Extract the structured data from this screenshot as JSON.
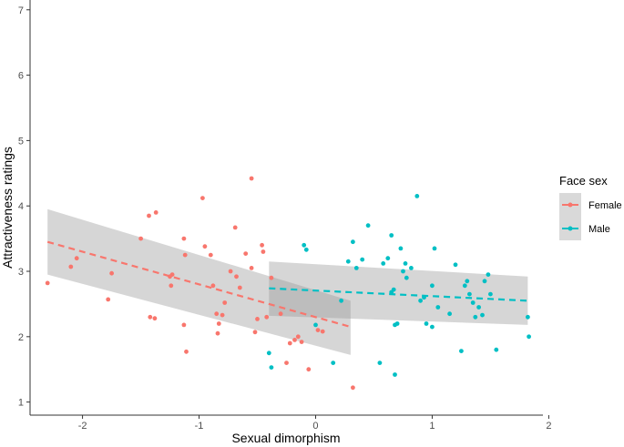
{
  "chart_data": {
    "type": "scatter",
    "xlabel": "Sexual dimorphism",
    "ylabel": "Attractiveness ratings",
    "xlim": [
      -2.45,
      1.95
    ],
    "ylim": [
      0.8,
      7.15
    ],
    "x_ticks": [
      -2,
      -1,
      0,
      1,
      2
    ],
    "y_ticks": [
      1,
      2,
      3,
      4,
      5,
      6,
      7
    ],
    "grid": false,
    "legend": {
      "title": "Face sex",
      "position": "right",
      "entries": [
        "Female",
        "Male"
      ]
    },
    "series": [
      {
        "name": "Female",
        "color": "#F8766D",
        "points": [
          [
            -2.3,
            2.82
          ],
          [
            -2.1,
            3.07
          ],
          [
            -2.05,
            3.2
          ],
          [
            -1.78,
            2.57
          ],
          [
            -1.75,
            2.97
          ],
          [
            -1.5,
            3.5
          ],
          [
            -1.43,
            3.85
          ],
          [
            -1.37,
            3.9
          ],
          [
            -1.42,
            2.3
          ],
          [
            -1.38,
            2.28
          ],
          [
            -1.25,
            2.92
          ],
          [
            -1.23,
            2.95
          ],
          [
            -1.24,
            2.78
          ],
          [
            -1.13,
            3.5
          ],
          [
            -1.12,
            3.25
          ],
          [
            -1.13,
            2.18
          ],
          [
            -1.11,
            1.77
          ],
          [
            -0.97,
            4.12
          ],
          [
            -0.95,
            3.38
          ],
          [
            -0.9,
            3.25
          ],
          [
            -0.88,
            2.78
          ],
          [
            -0.85,
            2.35
          ],
          [
            -0.84,
            2.05
          ],
          [
            -0.83,
            2.2
          ],
          [
            -0.8,
            2.33
          ],
          [
            -0.78,
            2.52
          ],
          [
            -0.73,
            3.0
          ],
          [
            -0.69,
            3.67
          ],
          [
            -0.68,
            2.92
          ],
          [
            -0.65,
            2.75
          ],
          [
            -0.6,
            3.27
          ],
          [
            -0.55,
            3.05
          ],
          [
            -0.55,
            4.42
          ],
          [
            -0.5,
            2.27
          ],
          [
            -0.52,
            2.07
          ],
          [
            -0.46,
            3.4
          ],
          [
            -0.45,
            3.3
          ],
          [
            -0.42,
            2.3
          ],
          [
            -0.38,
            2.9
          ],
          [
            -0.3,
            2.35
          ],
          [
            -0.25,
            1.6
          ],
          [
            -0.22,
            1.9
          ],
          [
            -0.18,
            1.95
          ],
          [
            -0.15,
            2.0
          ],
          [
            -0.12,
            1.92
          ],
          [
            -0.06,
            1.5
          ],
          [
            0.02,
            2.1
          ],
          [
            0.06,
            2.08
          ],
          [
            0.32,
            1.22
          ]
        ],
        "trend": {
          "x_start": -2.3,
          "x_end": 0.3,
          "y_start": 3.45,
          "y_end": 2.15
        },
        "ci": {
          "upper_start": 3.95,
          "upper_end": 2.55,
          "lower_start": 2.95,
          "lower_end": 1.72
        }
      },
      {
        "name": "Male",
        "color": "#00BFC4",
        "points": [
          [
            -0.4,
            1.75
          ],
          [
            -0.38,
            1.53
          ],
          [
            -0.1,
            3.4
          ],
          [
            -0.08,
            3.33
          ],
          [
            0.0,
            2.18
          ],
          [
            0.15,
            1.6
          ],
          [
            0.22,
            2.55
          ],
          [
            0.28,
            3.15
          ],
          [
            0.32,
            3.45
          ],
          [
            0.35,
            3.05
          ],
          [
            0.4,
            3.18
          ],
          [
            0.45,
            3.7
          ],
          [
            0.55,
            1.6
          ],
          [
            0.58,
            3.12
          ],
          [
            0.62,
            3.2
          ],
          [
            0.65,
            3.55
          ],
          [
            0.65,
            2.68
          ],
          [
            0.67,
            2.72
          ],
          [
            0.68,
            2.18
          ],
          [
            0.7,
            2.2
          ],
          [
            0.68,
            1.42
          ],
          [
            0.73,
            3.35
          ],
          [
            0.75,
            3.0
          ],
          [
            0.77,
            3.12
          ],
          [
            0.78,
            2.9
          ],
          [
            0.82,
            3.05
          ],
          [
            0.87,
            4.15
          ],
          [
            0.9,
            2.55
          ],
          [
            0.93,
            2.6
          ],
          [
            0.95,
            2.2
          ],
          [
            1.0,
            2.15
          ],
          [
            1.0,
            2.78
          ],
          [
            1.02,
            3.35
          ],
          [
            1.05,
            2.45
          ],
          [
            1.15,
            2.35
          ],
          [
            1.2,
            3.1
          ],
          [
            1.25,
            1.78
          ],
          [
            1.28,
            2.78
          ],
          [
            1.3,
            2.85
          ],
          [
            1.32,
            2.65
          ],
          [
            1.35,
            2.52
          ],
          [
            1.37,
            2.3
          ],
          [
            1.4,
            2.45
          ],
          [
            1.43,
            2.33
          ],
          [
            1.45,
            2.85
          ],
          [
            1.48,
            2.95
          ],
          [
            1.5,
            2.65
          ],
          [
            1.55,
            1.8
          ],
          [
            1.82,
            2.3
          ],
          [
            1.83,
            2.0
          ]
        ],
        "trend": {
          "x_start": -0.4,
          "x_end": 1.82,
          "y_start": 2.74,
          "y_end": 2.55
        },
        "ci": {
          "upper_start": 3.15,
          "upper_end": 2.92,
          "lower_start": 2.32,
          "lower_end": 2.18
        }
      }
    ]
  }
}
